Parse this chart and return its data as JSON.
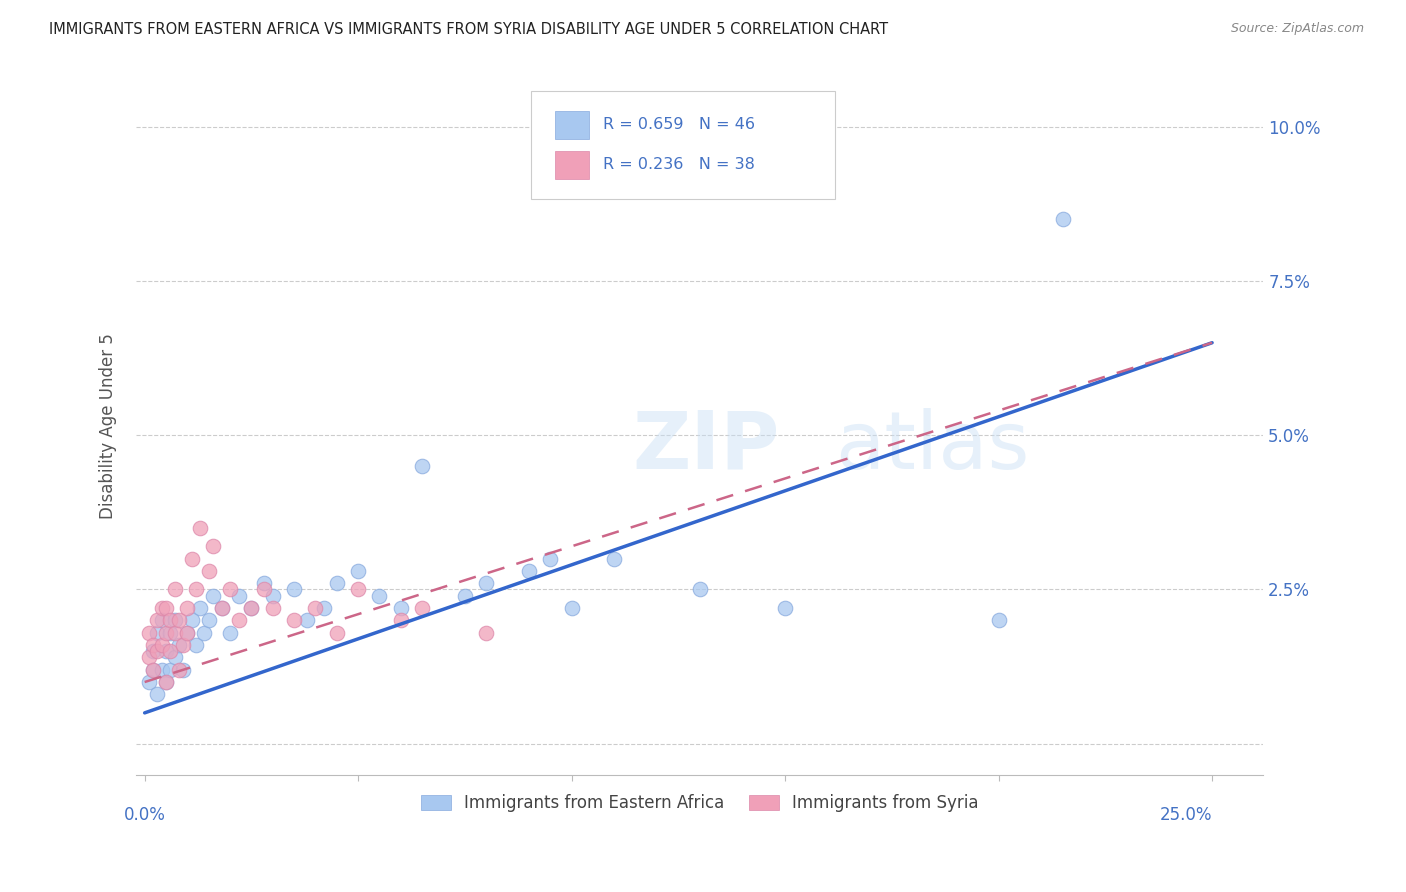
{
  "title": "IMMIGRANTS FROM EASTERN AFRICA VS IMMIGRANTS FROM SYRIA DISABILITY AGE UNDER 5 CORRELATION CHART",
  "source": "Source: ZipAtlas.com",
  "ylabel": "Disability Age Under 5",
  "legend_bottom_left": "Immigrants from Eastern Africa",
  "legend_bottom_right": "Immigrants from Syria",
  "r_blue": 0.659,
  "n_blue": 46,
  "r_pink": 0.236,
  "n_pink": 38,
  "ytick_values": [
    0.0,
    0.025,
    0.05,
    0.075,
    0.1
  ],
  "ytick_labels": [
    "",
    "2.5%",
    "5.0%",
    "7.5%",
    "10.0%"
  ],
  "xtick_values": [
    0.0,
    0.05,
    0.1,
    0.15,
    0.2,
    0.25
  ],
  "xlim": [
    -0.002,
    0.262
  ],
  "ylim": [
    -0.005,
    0.108
  ],
  "blue_color": "#A8C8F0",
  "pink_color": "#F0A0B8",
  "blue_line_color": "#3366CC",
  "pink_line_color": "#CC6688",
  "blue_x": [
    0.001,
    0.002,
    0.002,
    0.003,
    0.003,
    0.004,
    0.004,
    0.005,
    0.005,
    0.006,
    0.006,
    0.007,
    0.007,
    0.008,
    0.009,
    0.01,
    0.011,
    0.012,
    0.013,
    0.014,
    0.015,
    0.016,
    0.018,
    0.02,
    0.022,
    0.025,
    0.028,
    0.03,
    0.035,
    0.038,
    0.042,
    0.045,
    0.05,
    0.055,
    0.06,
    0.065,
    0.075,
    0.08,
    0.09,
    0.095,
    0.1,
    0.11,
    0.13,
    0.15,
    0.2,
    0.215
  ],
  "blue_y": [
    0.01,
    0.012,
    0.015,
    0.008,
    0.018,
    0.012,
    0.02,
    0.01,
    0.015,
    0.012,
    0.018,
    0.014,
    0.02,
    0.016,
    0.012,
    0.018,
    0.02,
    0.016,
    0.022,
    0.018,
    0.02,
    0.024,
    0.022,
    0.018,
    0.024,
    0.022,
    0.026,
    0.024,
    0.025,
    0.02,
    0.022,
    0.026,
    0.028,
    0.024,
    0.022,
    0.045,
    0.024,
    0.026,
    0.028,
    0.03,
    0.022,
    0.03,
    0.025,
    0.022,
    0.02,
    0.085
  ],
  "pink_x": [
    0.001,
    0.001,
    0.002,
    0.002,
    0.003,
    0.003,
    0.004,
    0.004,
    0.005,
    0.005,
    0.005,
    0.006,
    0.006,
    0.007,
    0.007,
    0.008,
    0.008,
    0.009,
    0.01,
    0.01,
    0.011,
    0.012,
    0.013,
    0.015,
    0.016,
    0.018,
    0.02,
    0.022,
    0.025,
    0.028,
    0.03,
    0.035,
    0.04,
    0.045,
    0.05,
    0.06,
    0.065,
    0.08
  ],
  "pink_y": [
    0.018,
    0.014,
    0.016,
    0.012,
    0.02,
    0.015,
    0.022,
    0.016,
    0.018,
    0.022,
    0.01,
    0.015,
    0.02,
    0.018,
    0.025,
    0.012,
    0.02,
    0.016,
    0.022,
    0.018,
    0.03,
    0.025,
    0.035,
    0.028,
    0.032,
    0.022,
    0.025,
    0.02,
    0.022,
    0.025,
    0.022,
    0.02,
    0.022,
    0.018,
    0.025,
    0.02,
    0.022,
    0.018
  ],
  "blue_line_x": [
    0.0,
    0.25
  ],
  "blue_line_y": [
    0.005,
    0.065
  ],
  "pink_line_x": [
    0.0,
    0.25
  ],
  "pink_line_y": [
    0.01,
    0.065
  ]
}
